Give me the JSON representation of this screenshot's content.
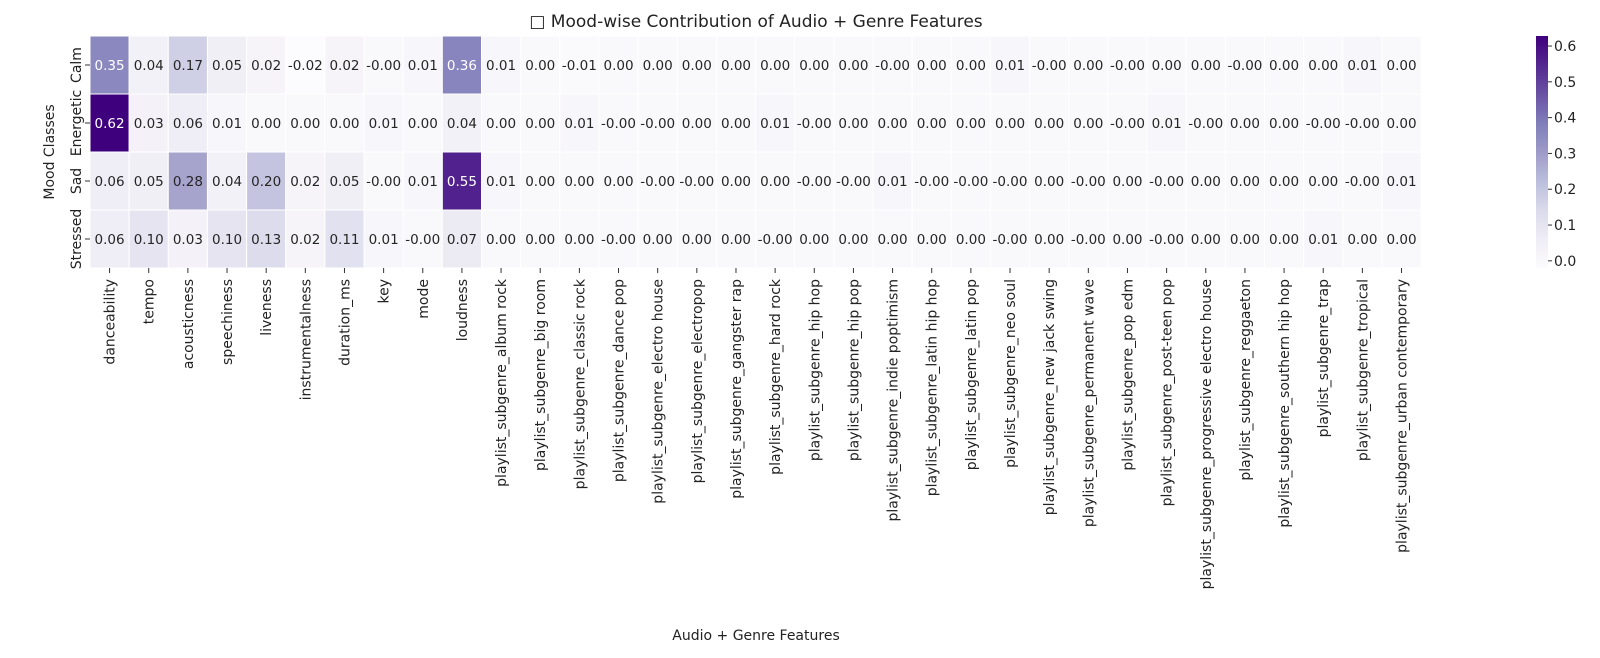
{
  "chart_data": {
    "type": "heatmap",
    "title": "□ Mood-wise Contribution of Audio + Genre Features",
    "xlabel": "Audio + Genre Features",
    "ylabel": "Mood Classes",
    "rows": [
      "Calm",
      "Energetic",
      "Sad",
      "Stressed"
    ],
    "columns": [
      "danceability",
      "tempo",
      "acousticness",
      "speechiness",
      "liveness",
      "instrumentalness",
      "duration_ms",
      "key",
      "mode",
      "loudness",
      "playlist_subgenre_album rock",
      "playlist_subgenre_big room",
      "playlist_subgenre_classic rock",
      "playlist_subgenre_dance pop",
      "playlist_subgenre_electro house",
      "playlist_subgenre_electropop",
      "playlist_subgenre_gangster rap",
      "playlist_subgenre_hard rock",
      "playlist_subgenre_hip hop",
      "playlist_subgenre_hip pop",
      "playlist_subgenre_indie poptimism",
      "playlist_subgenre_latin hip hop",
      "playlist_subgenre_latin pop",
      "playlist_subgenre_neo soul",
      "playlist_subgenre_new jack swing",
      "playlist_subgenre_permanent wave",
      "playlist_subgenre_pop edm",
      "playlist_subgenre_post-teen pop",
      "playlist_subgenre_progressive electro house",
      "playlist_subgenre_reggaeton",
      "playlist_subgenre_southern hip hop",
      "playlist_subgenre_trap",
      "playlist_subgenre_tropical",
      "playlist_subgenre_urban contemporary"
    ],
    "values": [
      [
        0.35,
        0.04,
        0.17,
        0.05,
        0.02,
        -0.02,
        0.02,
        -0.0,
        0.01,
        0.36,
        0.01,
        0.0,
        -0.01,
        0.0,
        0.0,
        0.0,
        0.0,
        0.0,
        0.0,
        0.0,
        -0.0,
        0.0,
        0.0,
        0.01,
        -0.0,
        0.0,
        -0.0,
        0.0,
        0.0,
        -0.0,
        0.0,
        0.0,
        0.01,
        0.0
      ],
      [
        0.62,
        0.03,
        0.06,
        0.01,
        0.0,
        0.0,
        0.0,
        0.01,
        0.0,
        0.04,
        0.0,
        0.0,
        0.01,
        -0.0,
        -0.0,
        0.0,
        0.0,
        0.01,
        -0.0,
        0.0,
        0.0,
        0.0,
        0.0,
        0.0,
        0.0,
        0.0,
        -0.0,
        0.01,
        -0.0,
        0.0,
        0.0,
        -0.0,
        -0.0,
        0.0
      ],
      [
        0.06,
        0.05,
        0.28,
        0.04,
        0.2,
        0.02,
        0.05,
        -0.0,
        0.01,
        0.55,
        0.01,
        0.0,
        0.0,
        0.0,
        -0.0,
        -0.0,
        0.0,
        0.0,
        -0.0,
        -0.0,
        0.01,
        -0.0,
        -0.0,
        -0.0,
        0.0,
        -0.0,
        0.0,
        -0.0,
        0.0,
        0.0,
        0.0,
        0.0,
        -0.0,
        0.01
      ],
      [
        0.06,
        0.1,
        0.03,
        0.1,
        0.13,
        0.02,
        0.11,
        0.01,
        -0.0,
        0.07,
        0.0,
        0.0,
        0.0,
        -0.0,
        0.0,
        0.0,
        0.0,
        -0.0,
        0.0,
        0.0,
        0.0,
        0.0,
        0.0,
        -0.0,
        0.0,
        -0.0,
        0.0,
        -0.0,
        0.0,
        0.0,
        0.0,
        0.01,
        0.0,
        0.0
      ]
    ],
    "labels": [
      [
        "0.35",
        "0.04",
        "0.17",
        "0.05",
        "0.02",
        "-0.02",
        "0.02",
        "-0.00",
        "0.01",
        "0.36",
        "0.01",
        "0.00",
        "-0.01",
        "0.00",
        "0.00",
        "0.00",
        "0.00",
        "0.00",
        "0.00",
        "0.00",
        "-0.00",
        "0.00",
        "0.00",
        "0.01",
        "-0.00",
        "0.00",
        "-0.00",
        "0.00",
        "0.00",
        "-0.00",
        "0.00",
        "0.00",
        "0.01",
        "0.00"
      ],
      [
        "0.62",
        "0.03",
        "0.06",
        "0.01",
        "0.00",
        "0.00",
        "0.00",
        "0.01",
        "0.00",
        "0.04",
        "0.00",
        "0.00",
        "0.01",
        "-0.00",
        "-0.00",
        "0.00",
        "0.00",
        "0.01",
        "-0.00",
        "0.00",
        "0.00",
        "0.00",
        "0.00",
        "0.00",
        "0.00",
        "0.00",
        "-0.00",
        "0.01",
        "-0.00",
        "0.00",
        "0.00",
        "-0.00",
        "-0.00",
        "0.00"
      ],
      [
        "0.06",
        "0.05",
        "0.28",
        "0.04",
        "0.20",
        "0.02",
        "0.05",
        "-0.00",
        "0.01",
        "0.55",
        "0.01",
        "0.00",
        "0.00",
        "0.00",
        "-0.00",
        "-0.00",
        "0.00",
        "0.00",
        "-0.00",
        "-0.00",
        "0.01",
        "-0.00",
        "-0.00",
        "-0.00",
        "0.00",
        "-0.00",
        "0.00",
        "-0.00",
        "0.00",
        "0.00",
        "0.00",
        "0.00",
        "-0.00",
        "0.01"
      ],
      [
        "0.06",
        "0.10",
        "0.03",
        "0.10",
        "0.13",
        "0.02",
        "0.11",
        "0.01",
        "-0.00",
        "0.07",
        "0.00",
        "0.00",
        "0.00",
        "-0.00",
        "0.00",
        "0.00",
        "0.00",
        "-0.00",
        "0.00",
        "0.00",
        "0.00",
        "0.00",
        "0.00",
        "-0.00",
        "0.00",
        "-0.00",
        "0.00",
        "-0.00",
        "0.00",
        "0.00",
        "0.00",
        "0.01",
        "0.00",
        "0.00"
      ]
    ],
    "colorscale": "Purples",
    "color_range": [
      -0.02,
      0.62
    ],
    "colorbar_ticks": [
      "0.0",
      "0.1",
      "0.2",
      "0.3",
      "0.4",
      "0.5",
      "0.6"
    ],
    "colors": {
      "low": "#fcfbfd",
      "high": "#3f007d"
    }
  }
}
